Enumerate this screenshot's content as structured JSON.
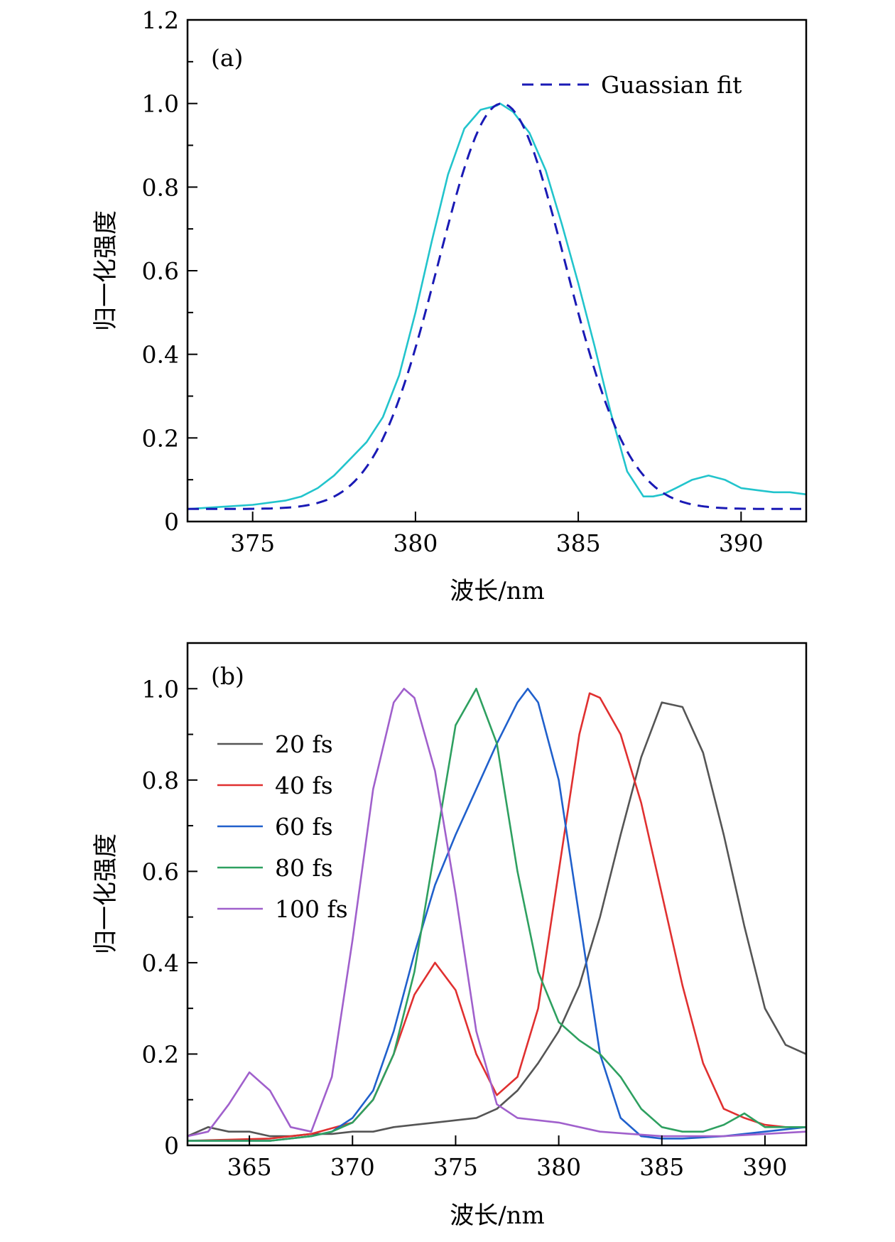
{
  "chart_data": [
    {
      "type": "line",
      "panel_label": "(a)",
      "xlabel": "波长/nm",
      "ylabel": "归一化强度",
      "xlim": [
        373,
        392
      ],
      "ylim": [
        0,
        1.2
      ],
      "xticks": [
        375,
        380,
        385,
        390
      ],
      "xtick_labels": [
        "375",
        "380",
        "385",
        "390"
      ],
      "yticks": [
        0,
        0.2,
        0.4,
        0.6,
        0.8,
        1.0,
        1.2
      ],
      "ytick_labels": [
        "0",
        "0.2",
        "0.4",
        "0.6",
        "0.8",
        "1.0",
        "1.2"
      ],
      "legend_position": "top-right",
      "series": [
        {
          "name": "",
          "color": "#22c4cc",
          "dash": "solid",
          "x": [
            373,
            374,
            375,
            376,
            376.5,
            377,
            377.5,
            378,
            378.5,
            379,
            379.5,
            380,
            380.5,
            381,
            381.5,
            382,
            382.5,
            382.6,
            383,
            383.5,
            384,
            384.5,
            385,
            385.5,
            386,
            386.5,
            387,
            387.3,
            387.6,
            388,
            388.5,
            389,
            389.5,
            390,
            390.5,
            391,
            391.5,
            392
          ],
          "y": [
            0.03,
            0.035,
            0.04,
            0.05,
            0.06,
            0.08,
            0.11,
            0.15,
            0.19,
            0.25,
            0.35,
            0.5,
            0.67,
            0.83,
            0.94,
            0.985,
            0.995,
            1.0,
            0.98,
            0.93,
            0.84,
            0.71,
            0.57,
            0.42,
            0.26,
            0.12,
            0.06,
            0.06,
            0.065,
            0.08,
            0.1,
            0.11,
            0.1,
            0.08,
            0.075,
            0.07,
            0.07,
            0.065
          ]
        },
        {
          "name": "Guassian fit",
          "color": "#1a1ab5",
          "dash": "dashed",
          "gaussian": {
            "center": 382.65,
            "sigma": 1.95,
            "amplitude": 0.97,
            "baseline": 0.03
          }
        }
      ]
    },
    {
      "type": "line",
      "panel_label": "(b)",
      "xlabel": "波长/nm",
      "ylabel": "归一化强度",
      "xlim": [
        362,
        392
      ],
      "ylim": [
        0,
        1.1
      ],
      "xticks": [
        365,
        370,
        375,
        380,
        385,
        390
      ],
      "xtick_labels": [
        "365",
        "370",
        "375",
        "380",
        "385",
        "390"
      ],
      "yticks": [
        0,
        0.2,
        0.4,
        0.6,
        0.8,
        1.0
      ],
      "ytick_labels": [
        "0",
        "0.2",
        "0.4",
        "0.6",
        "0.8",
        "1.0"
      ],
      "legend_position": "top-left",
      "series": [
        {
          "name": "20 fs",
          "color": "#555555",
          "x": [
            362,
            363,
            364,
            365,
            366,
            367,
            368,
            369,
            370,
            371,
            372,
            373,
            374,
            375,
            376,
            377,
            378,
            379,
            380,
            381,
            382,
            383,
            384,
            385,
            386,
            387,
            388,
            389,
            390,
            391,
            392
          ],
          "y": [
            0.02,
            0.04,
            0.03,
            0.03,
            0.02,
            0.02,
            0.025,
            0.025,
            0.03,
            0.03,
            0.04,
            0.045,
            0.05,
            0.055,
            0.06,
            0.08,
            0.12,
            0.18,
            0.25,
            0.35,
            0.5,
            0.68,
            0.85,
            0.97,
            0.96,
            0.86,
            0.68,
            0.48,
            0.3,
            0.22,
            0.2
          ]
        },
        {
          "name": "40 fs",
          "color": "#e03030",
          "x": [
            362,
            366,
            368,
            370,
            371,
            372,
            373,
            374,
            375,
            376,
            377,
            378,
            379,
            380,
            381,
            381.5,
            382,
            383,
            384,
            385,
            386,
            387,
            388,
            389,
            390,
            391,
            392
          ],
          "y": [
            0.01,
            0.015,
            0.025,
            0.05,
            0.1,
            0.2,
            0.33,
            0.4,
            0.34,
            0.2,
            0.11,
            0.15,
            0.3,
            0.6,
            0.9,
            0.99,
            0.98,
            0.9,
            0.75,
            0.55,
            0.35,
            0.18,
            0.08,
            0.06,
            0.045,
            0.04,
            0.04
          ]
        },
        {
          "name": "60 fs",
          "color": "#2060cc",
          "x": [
            362,
            366,
            368,
            369,
            370,
            371,
            372,
            373,
            374,
            375,
            376,
            377,
            378,
            378.5,
            379,
            380,
            381,
            382,
            383,
            384,
            385,
            386,
            388,
            390,
            392
          ],
          "y": [
            0.01,
            0.01,
            0.02,
            0.03,
            0.06,
            0.12,
            0.25,
            0.42,
            0.57,
            0.68,
            0.78,
            0.88,
            0.97,
            1.0,
            0.97,
            0.8,
            0.5,
            0.2,
            0.06,
            0.02,
            0.015,
            0.015,
            0.02,
            0.03,
            0.04
          ]
        },
        {
          "name": "80 fs",
          "color": "#2ea060",
          "x": [
            362,
            366,
            368,
            369,
            370,
            371,
            372,
            373,
            374,
            375,
            376,
            377,
            378,
            379,
            380,
            381,
            382,
            383,
            384,
            385,
            386,
            387,
            388,
            389,
            390,
            392
          ],
          "y": [
            0.01,
            0.01,
            0.02,
            0.03,
            0.05,
            0.1,
            0.2,
            0.38,
            0.65,
            0.92,
            1.0,
            0.88,
            0.6,
            0.38,
            0.27,
            0.23,
            0.2,
            0.15,
            0.08,
            0.04,
            0.03,
            0.03,
            0.045,
            0.07,
            0.04,
            0.04
          ]
        },
        {
          "name": "100 fs",
          "color": "#a060cc",
          "x": [
            362,
            363,
            364,
            365,
            366,
            367,
            368,
            369,
            370,
            371,
            372,
            372.5,
            373,
            374,
            375,
            376,
            377,
            378,
            380,
            382,
            385,
            388,
            390,
            392
          ],
          "y": [
            0.02,
            0.03,
            0.09,
            0.16,
            0.12,
            0.04,
            0.03,
            0.15,
            0.45,
            0.78,
            0.97,
            1.0,
            0.98,
            0.82,
            0.55,
            0.25,
            0.09,
            0.06,
            0.05,
            0.03,
            0.02,
            0.02,
            0.025,
            0.03
          ]
        }
      ]
    }
  ]
}
